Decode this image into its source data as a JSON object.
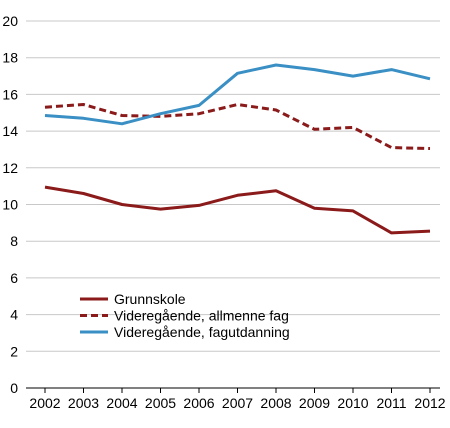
{
  "chart_data": {
    "type": "line",
    "x": [
      "2002",
      "2003",
      "2004",
      "2005",
      "2006",
      "2007",
      "2008",
      "2009",
      "2010",
      "2011",
      "2012"
    ],
    "ylim": [
      0,
      20
    ],
    "yticks": [
      0,
      2,
      4,
      6,
      8,
      10,
      12,
      14,
      16,
      18,
      20
    ],
    "grid": "horizontal",
    "legend_position": "bottom-left",
    "series": [
      {
        "name": "Grunnskole",
        "color": "#8b1a1a",
        "style": "solid",
        "values": [
          10.95,
          10.6,
          10.0,
          9.75,
          9.95,
          10.5,
          10.75,
          9.8,
          9.65,
          8.45,
          8.55
        ]
      },
      {
        "name": "Videregående, allmenne fag",
        "color": "#8b1a1a",
        "style": "dashed",
        "values": [
          15.3,
          15.45,
          14.85,
          14.8,
          14.95,
          15.45,
          15.15,
          14.1,
          14.2,
          13.1,
          13.05
        ]
      },
      {
        "name": "Videregående, fagutdanning",
        "color": "#3a8fc4",
        "style": "solid",
        "values": [
          14.85,
          14.7,
          14.4,
          14.95,
          15.4,
          17.15,
          17.6,
          17.35,
          17.0,
          17.35,
          16.85
        ]
      }
    ]
  }
}
